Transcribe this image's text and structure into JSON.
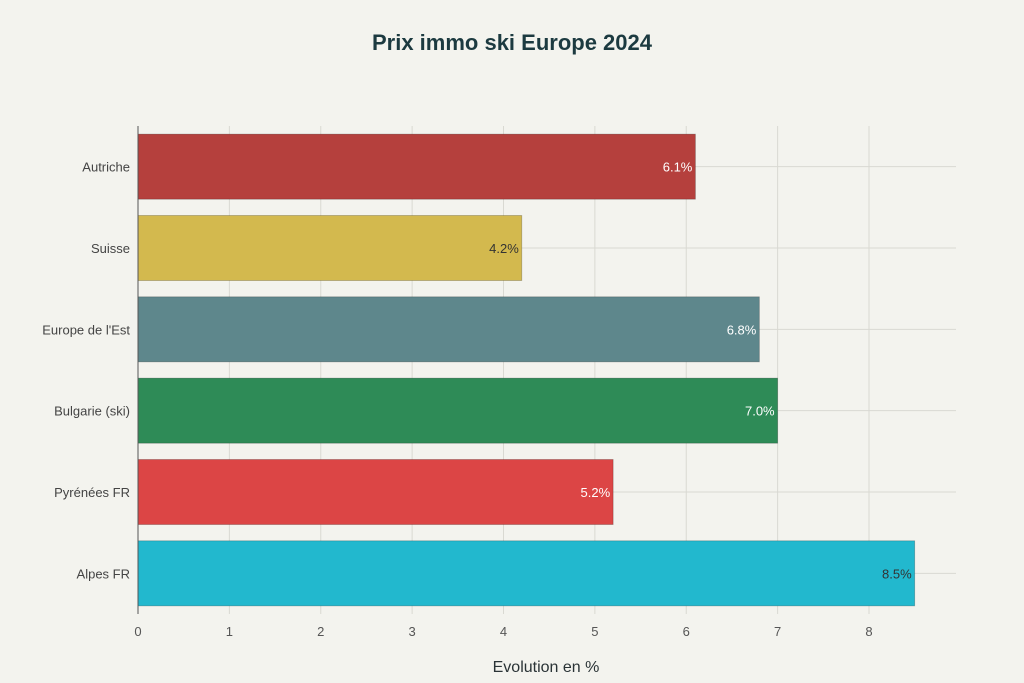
{
  "chart_data": {
    "type": "bar",
    "orientation": "horizontal",
    "title": "Prix immo ski Europe 2024",
    "xlabel": "Evolution en %",
    "ylabel": "",
    "xlim": [
      0,
      9
    ],
    "x_ticks": [
      0,
      1,
      2,
      3,
      4,
      5,
      6,
      7,
      8
    ],
    "grid": true,
    "legend": "none",
    "categories": [
      "Autriche",
      "Suisse",
      "Europe de l'Est",
      "Bulgarie (ski)",
      "Pyrénées FR",
      "Alpes FR"
    ],
    "values": [
      6.1,
      4.2,
      6.8,
      7.0,
      5.2,
      8.5
    ],
    "data_labels": [
      "6.1%",
      "4.2%",
      "6.8%",
      "7.0%",
      "5.2%",
      "8.5%"
    ],
    "colors": [
      "#b5403d",
      "#d3b94e",
      "#5e878c",
      "#2e8b57",
      "#dc4545",
      "#22b8ce"
    ],
    "label_colors": [
      "#ffffff",
      "#333333",
      "#ffffff",
      "#ffffff",
      "#ffffff",
      "#333333"
    ]
  }
}
